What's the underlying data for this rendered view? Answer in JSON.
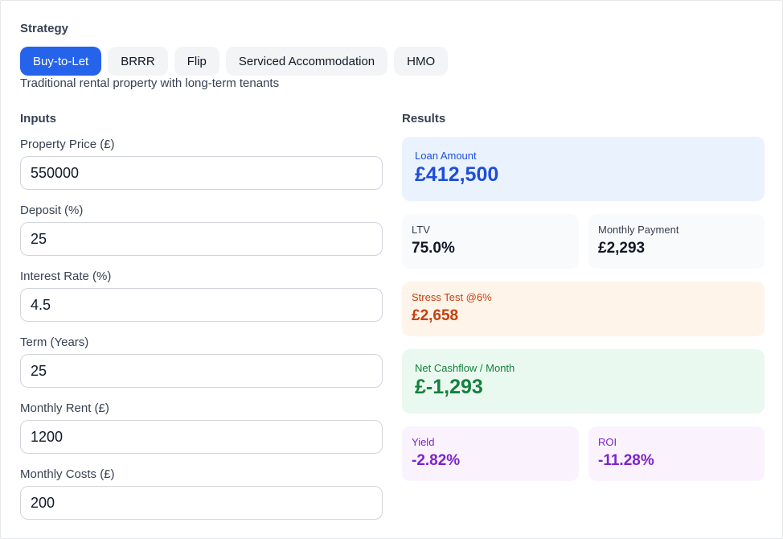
{
  "strategy": {
    "title": "Strategy",
    "tabs": [
      {
        "label": "Buy-to-Let",
        "active": true
      },
      {
        "label": "BRRR",
        "active": false
      },
      {
        "label": "Flip",
        "active": false
      },
      {
        "label": "Serviced Accommodation",
        "active": false
      },
      {
        "label": "HMO",
        "active": false
      }
    ],
    "description": "Traditional rental property with long-term tenants"
  },
  "inputs": {
    "title": "Inputs",
    "property_price": {
      "label": "Property Price (£)",
      "value": "550000"
    },
    "deposit": {
      "label": "Deposit (%)",
      "value": "25"
    },
    "interest_rate": {
      "label": "Interest Rate (%)",
      "value": "4.5"
    },
    "term": {
      "label": "Term (Years)",
      "value": "25"
    },
    "monthly_rent": {
      "label": "Monthly Rent (£)",
      "value": "1200"
    },
    "monthly_costs": {
      "label": "Monthly Costs (£)",
      "value": "200"
    }
  },
  "results": {
    "title": "Results",
    "loan_amount": {
      "label": "Loan Amount",
      "value": "£412,500"
    },
    "ltv": {
      "label": "LTV",
      "value": "75.0%"
    },
    "monthly_payment": {
      "label": "Monthly Payment",
      "value": "£2,293"
    },
    "stress_test": {
      "label": "Stress Test @6%",
      "value": "£2,658"
    },
    "net_cashflow": {
      "label": "Net Cashflow / Month",
      "value": "£-1,293"
    },
    "yield": {
      "label": "Yield",
      "value": "-2.82%"
    },
    "roi": {
      "label": "ROI",
      "value": "-11.28%"
    }
  },
  "colors": {
    "accent": "#2563eb",
    "loan_bg": "#eaf2fe",
    "stress_bg": "#fff4ea",
    "cashflow_bg": "#eaf9ef",
    "yield_bg": "#faf3fe"
  }
}
